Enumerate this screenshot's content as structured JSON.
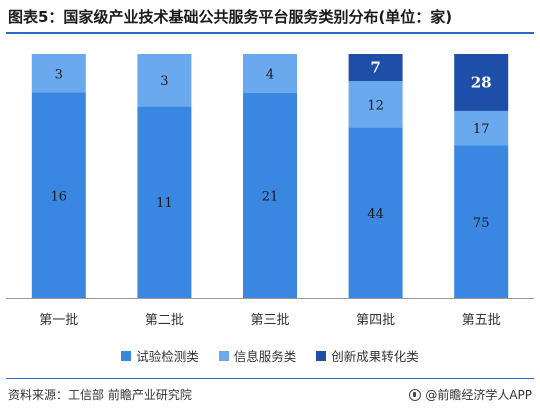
{
  "title": "图表5：国家级产业技术基础公共服务平台服务类别分布(单位：家)",
  "footer": {
    "source": "资料来源：工信部 前瞻产业研究院",
    "brand": "@前瞻经济学人APP"
  },
  "colors": {
    "series": [
      "#3a87e2",
      "#6aa9ee",
      "#1e4fa8"
    ],
    "axis": "#999999"
  },
  "chart_data": {
    "type": "bar",
    "stacked": true,
    "normalized": true,
    "categories": [
      "第一批",
      "第二批",
      "第三批",
      "第四批",
      "第五批"
    ],
    "series": [
      {
        "name": "试验检测类",
        "values": [
          16,
          11,
          21,
          44,
          75
        ]
      },
      {
        "name": "信息服务类",
        "values": [
          3,
          3,
          4,
          12,
          17
        ]
      },
      {
        "name": "创新成果转化类",
        "values": [
          0,
          0,
          0,
          7,
          28
        ]
      }
    ],
    "title": "图表5：国家级产业技术基础公共服务平台服务类别分布(单位：家)",
    "ylim": [
      0,
      100
    ],
    "grid": false,
    "legend": "bottom"
  }
}
